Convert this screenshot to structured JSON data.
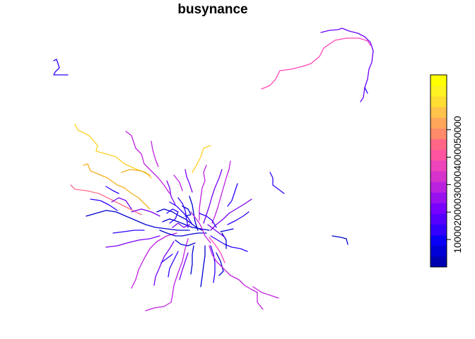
{
  "map": {
    "title": "busynance",
    "legend": {
      "type": "continuous color scale",
      "ticks": [
        "10000",
        "20000",
        "30000",
        "40000",
        "50000"
      ],
      "tick_values": [
        10000,
        20000,
        30000,
        40000,
        50000
      ],
      "range": [
        0,
        70000
      ],
      "color_steps": [
        "#0000B3",
        "#0000D6",
        "#0A00F5",
        "#3300FF",
        "#5500FF",
        "#7700FF",
        "#9A11F0",
        "#BB22E0",
        "#D633CC",
        "#EE44BB",
        "#FF55A0",
        "#FF6688",
        "#FF8A6A",
        "#FFA65A",
        "#FFC24A",
        "#FFDD33",
        "#FFF222",
        "#FFFF00"
      ]
    },
    "palette": {
      "very_low": "#0000D0",
      "low": "#2E00FF",
      "mid_low": "#7A00F5",
      "mid": "#C020E0",
      "mid_high": "#FF44B8",
      "high": "#FF6F8A",
      "very_high": "#F4B020",
      "top": "#FFCF20"
    }
  }
}
